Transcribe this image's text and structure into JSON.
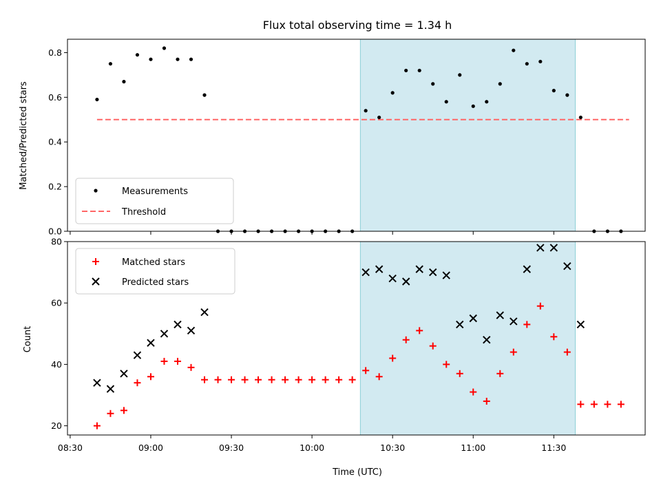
{
  "chart_data": [
    {
      "type": "scatter",
      "title": "Flux total observing time = 1.34 h",
      "xlabel": "",
      "ylabel": "Matched/Predicted stars",
      "ylim": [
        0,
        0.86
      ],
      "yticks": [
        0.0,
        0.2,
        0.4,
        0.6,
        0.8
      ],
      "ytick_labels": [
        "0.0",
        "0.2",
        "0.4",
        "0.6",
        "0.8"
      ],
      "legend_position": "lower-left",
      "shaded_interval": {
        "start": "10:18",
        "end": "11:38",
        "color": "#add8e6"
      },
      "series": [
        {
          "name": "Measurements",
          "marker": "dot",
          "color": "#000000",
          "x": [
            "08:40",
            "08:45",
            "08:50",
            "08:55",
            "09:00",
            "09:05",
            "09:10",
            "09:15",
            "09:20",
            "09:25",
            "09:30",
            "09:35",
            "09:40",
            "09:45",
            "09:50",
            "09:55",
            "10:00",
            "10:05",
            "10:10",
            "10:15",
            "10:20",
            "10:25",
            "10:30",
            "10:35",
            "10:40",
            "10:45",
            "10:50",
            "10:55",
            "11:00",
            "11:05",
            "11:10",
            "11:15",
            "11:20",
            "11:25",
            "11:30",
            "11:35",
            "11:40",
            "11:45",
            "11:50",
            "11:55"
          ],
          "y": [
            0.59,
            0.75,
            0.67,
            0.79,
            0.77,
            0.82,
            0.77,
            0.77,
            0.61,
            0.0,
            0.0,
            0.0,
            0.0,
            0.0,
            0.0,
            0.0,
            0.0,
            0.0,
            0.0,
            0.0,
            0.54,
            0.51,
            0.62,
            0.72,
            0.72,
            0.66,
            0.58,
            0.7,
            0.56,
            0.58,
            0.66,
            0.81,
            0.75,
            0.76,
            0.63,
            0.61,
            0.51,
            0.0,
            0.0,
            0.0
          ]
        },
        {
          "name": "Threshold",
          "style": "dashed",
          "color": "#ff6666",
          "x": [
            "08:40",
            "11:58"
          ],
          "y": [
            0.5,
            0.5
          ]
        }
      ]
    },
    {
      "type": "scatter",
      "title": "",
      "xlabel": "Time (UTC)",
      "ylabel": "Count",
      "ylim": [
        17,
        80
      ],
      "xlim": [
        "08:29",
        "12:04"
      ],
      "xticks": [
        "08:30",
        "09:00",
        "09:30",
        "10:00",
        "10:30",
        "11:00",
        "11:30"
      ],
      "yticks": [
        20,
        40,
        60,
        80
      ],
      "ytick_labels": [
        "20",
        "40",
        "60",
        "80"
      ],
      "legend_position": "upper-left",
      "shaded_interval": {
        "start": "10:18",
        "end": "11:38",
        "color": "#add8e6"
      },
      "series": [
        {
          "name": "Matched stars",
          "marker": "plus",
          "color": "#ff0000",
          "x": [
            "08:40",
            "08:45",
            "08:50",
            "08:55",
            "09:00",
            "09:05",
            "09:10",
            "09:15",
            "09:20",
            "09:25",
            "09:30",
            "09:35",
            "09:40",
            "09:45",
            "09:50",
            "09:55",
            "10:00",
            "10:05",
            "10:10",
            "10:15",
            "10:20",
            "10:25",
            "10:30",
            "10:35",
            "10:40",
            "10:45",
            "10:50",
            "10:55",
            "11:00",
            "11:05",
            "11:10",
            "11:15",
            "11:20",
            "11:25",
            "11:30",
            "11:35",
            "11:40",
            "11:45",
            "11:50",
            "11:55"
          ],
          "y": [
            20,
            24,
            25,
            34,
            36,
            41,
            41,
            39,
            35,
            35,
            35,
            35,
            35,
            35,
            35,
            35,
            35,
            35,
            35,
            35,
            38,
            36,
            42,
            48,
            51,
            46,
            40,
            37,
            31,
            28,
            37,
            44,
            53,
            59,
            49,
            44,
            27,
            27,
            27,
            27
          ]
        },
        {
          "name": "Predicted stars",
          "marker": "x",
          "color": "#000000",
          "x": [
            "08:40",
            "08:45",
            "08:50",
            "08:55",
            "09:00",
            "09:05",
            "09:10",
            "09:15",
            "09:20",
            "10:20",
            "10:25",
            "10:30",
            "10:35",
            "10:40",
            "10:45",
            "10:50",
            "10:55",
            "11:00",
            "11:05",
            "11:10",
            "11:15",
            "11:20",
            "11:25",
            "11:30",
            "11:35",
            "11:40"
          ],
          "y": [
            34,
            32,
            37,
            43,
            47,
            50,
            53,
            51,
            57,
            70,
            71,
            68,
            67,
            71,
            70,
            69,
            53,
            55,
            48,
            56,
            54,
            71,
            78,
            78,
            72,
            53
          ]
        }
      ]
    }
  ]
}
